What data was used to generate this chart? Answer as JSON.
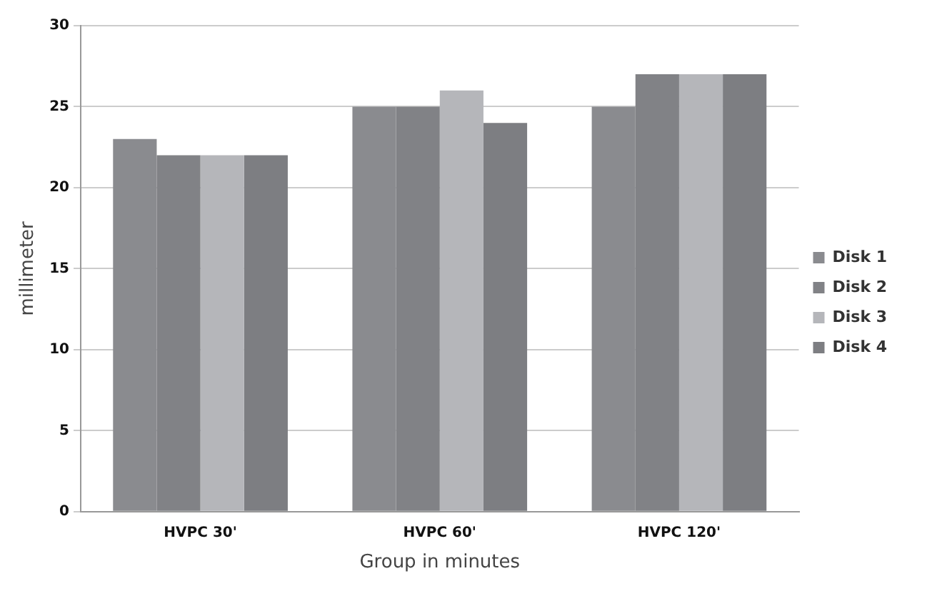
{
  "chart_data": {
    "type": "bar",
    "xlabel": "Group in minutes",
    "ylabel": "millimeter",
    "categories": [
      "HVPC 30'",
      "HVPC 60'",
      "HVPC 120'"
    ],
    "series": [
      {
        "name": "Disk 1",
        "color": "#8a8b8f",
        "values": [
          23,
          25,
          25
        ]
      },
      {
        "name": "Disk 2",
        "color": "#818286",
        "values": [
          22,
          25,
          27
        ]
      },
      {
        "name": "Disk 3",
        "color": "#b5b6ba",
        "values": [
          22,
          26,
          27
        ]
      },
      {
        "name": "Disk 4",
        "color": "#7d7e82",
        "values": [
          22,
          24,
          27
        ]
      }
    ],
    "ylim": [
      0,
      30
    ],
    "yticks": [
      0,
      5,
      10,
      15,
      20,
      25,
      30
    ],
    "grid": "y",
    "legend": "right"
  }
}
